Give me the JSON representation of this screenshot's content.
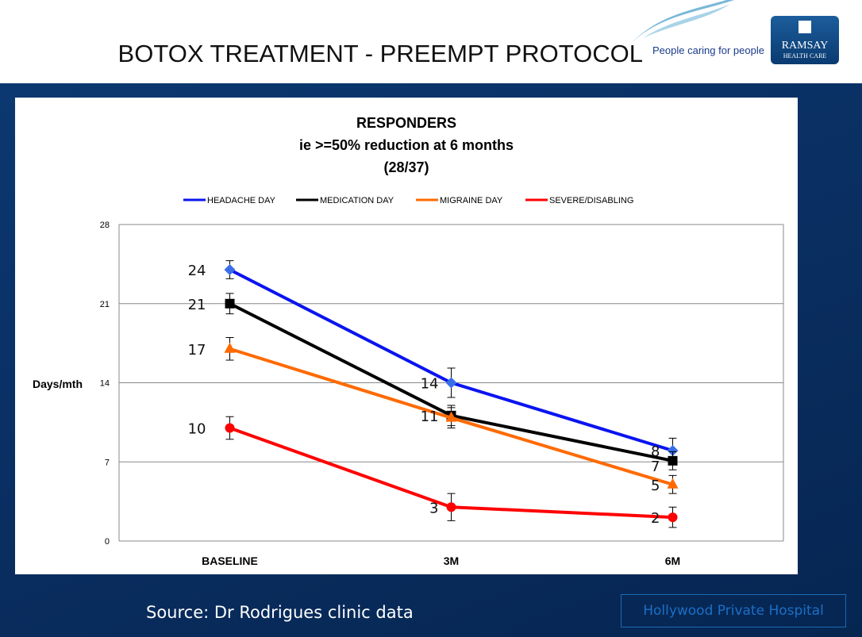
{
  "slide": {
    "title": "BOTOX TREATMENT - PREEMPT PROTOCOL",
    "tagline": "People caring for people",
    "logo": {
      "name": "RAMSAY",
      "sub": "HEALTH CARE"
    },
    "source": "Source: Dr Rodrigues clinic data",
    "hospital": "Hollywood Private Hospital"
  },
  "chart_data": {
    "type": "line",
    "title": [
      "RESPONDERS",
      "ie >=50% reduction at 6 months",
      "(28/37)"
    ],
    "ylabel": "Days/mth",
    "xlabel": "",
    "categories": [
      "BASELINE",
      "3M",
      "6M"
    ],
    "ylim": [
      0,
      28
    ],
    "yticks": [
      0,
      7,
      14,
      21,
      28
    ],
    "grid": true,
    "legend": "top",
    "series": [
      {
        "name": "HEADACHE DAY",
        "color": "#0a14f0",
        "marker": "diamond",
        "values": [
          24,
          14,
          8
        ],
        "err": [
          0.8,
          1.3,
          1.1
        ],
        "labels": [
          "24",
          "14",
          "8"
        ]
      },
      {
        "name": "MEDICATION DAY",
        "color": "#000000",
        "marker": "square",
        "values": [
          21,
          11.1,
          7.1
        ],
        "err": [
          0.9,
          0.9,
          0.8
        ],
        "labels": [
          "21",
          "11",
          "7"
        ]
      },
      {
        "name": "MIGRAINE DAY",
        "color": "#ff6a00",
        "marker": "triangle",
        "values": [
          17,
          10.9,
          5
        ],
        "err": [
          1,
          0.9,
          0.8
        ],
        "labels": [
          "17",
          "",
          "5"
        ]
      },
      {
        "name": "SEVERE/DISABLING",
        "color": "#ff0000",
        "marker": "circle",
        "values": [
          10,
          3,
          2.1
        ],
        "err": [
          1,
          1.2,
          0.9
        ],
        "labels": [
          "10",
          "3",
          "2"
        ]
      }
    ]
  }
}
